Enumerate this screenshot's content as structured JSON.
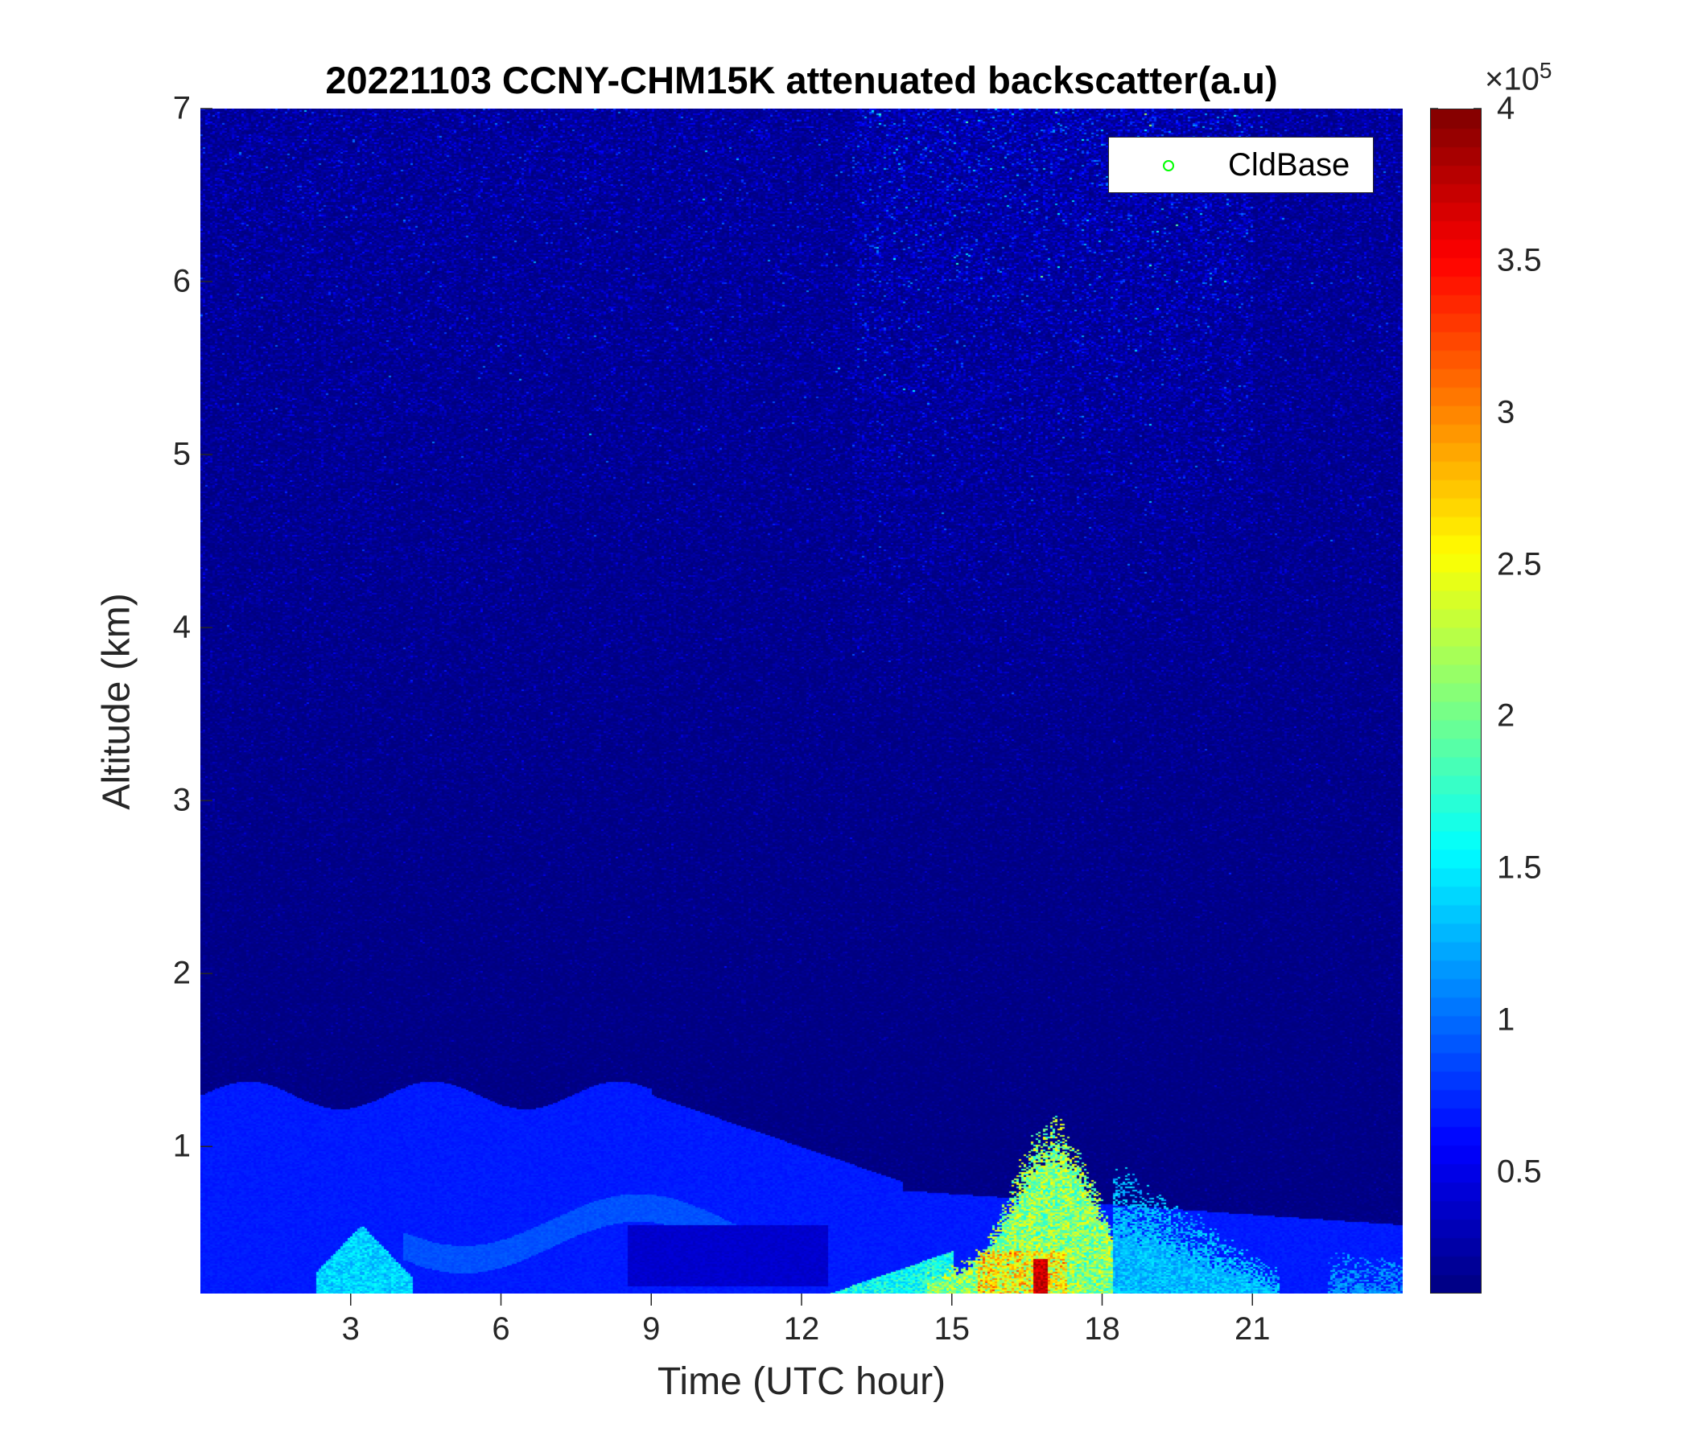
{
  "chart_data": {
    "type": "heatmap",
    "title": "20221103 CCNY-CHM15K attenuated backscatter(a.u)",
    "xlabel": "Time (UTC hour)",
    "ylabel": "Altitude (km)",
    "xlim": [
      0,
      24
    ],
    "ylim": [
      0.15,
      7
    ],
    "xticks": [
      "3",
      "6",
      "9",
      "12",
      "15",
      "18",
      "21"
    ],
    "xtick_values": [
      3,
      6,
      9,
      12,
      15,
      18,
      21
    ],
    "yticks": [
      "1",
      "2",
      "3",
      "4",
      "5",
      "6",
      "7"
    ],
    "ytick_values": [
      1,
      2,
      3,
      4,
      5,
      6,
      7
    ],
    "colormap": "jet",
    "colorbar": {
      "range": [
        0.1,
        4
      ],
      "exponent_label": "×10",
      "exponent": "5",
      "ticks": [
        "0.5",
        "1",
        "1.5",
        "2",
        "2.5",
        "3",
        "3.5",
        "4"
      ],
      "tick_values": [
        0.5,
        1,
        1.5,
        2,
        2.5,
        3,
        3.5,
        4
      ]
    },
    "legend": {
      "placement": "top-right",
      "entries": [
        {
          "label": "CldBase",
          "marker": "circle",
          "color": "#00ff00"
        }
      ]
    },
    "grid": false
  }
}
